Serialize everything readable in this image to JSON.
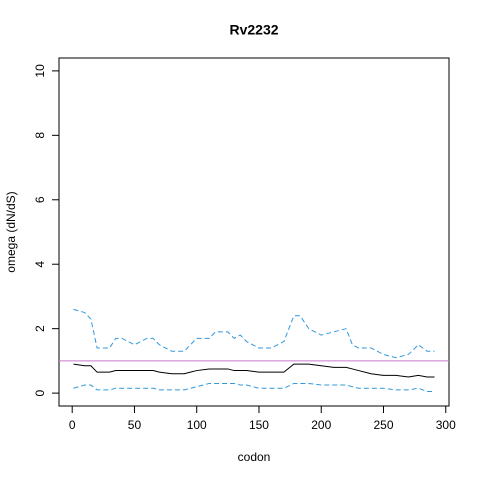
{
  "chart_data": {
    "type": "line",
    "title": "Rv2232",
    "x_label": "codon",
    "y_label": "omega (dN/dS)",
    "x": [
      1,
      10,
      15,
      20,
      30,
      35,
      40,
      50,
      60,
      65,
      70,
      80,
      90,
      95,
      100,
      110,
      115,
      125,
      130,
      135,
      140,
      150,
      160,
      170,
      178,
      183,
      190,
      200,
      210,
      220,
      225,
      230,
      240,
      250,
      260,
      270,
      278,
      285,
      291
    ],
    "series": [
      {
        "color": "#3399dd",
        "linestyle": "dashed",
        "values": [
          2.6,
          2.5,
          2.3,
          1.4,
          1.4,
          1.7,
          1.7,
          1.5,
          1.7,
          1.7,
          1.5,
          1.3,
          1.3,
          1.5,
          1.7,
          1.7,
          1.9,
          1.9,
          1.7,
          1.8,
          1.6,
          1.4,
          1.4,
          1.6,
          2.4,
          2.4,
          2.0,
          1.8,
          1.9,
          2.0,
          1.5,
          1.4,
          1.4,
          1.2,
          1.1,
          1.2,
          1.5,
          1.3,
          1.3
        ]
      },
      {
        "color": "#000000",
        "linestyle": "solid",
        "values": [
          0.9,
          0.85,
          0.85,
          0.65,
          0.65,
          0.7,
          0.7,
          0.7,
          0.7,
          0.7,
          0.65,
          0.6,
          0.6,
          0.65,
          0.7,
          0.75,
          0.75,
          0.75,
          0.7,
          0.7,
          0.7,
          0.65,
          0.65,
          0.65,
          0.9,
          0.9,
          0.9,
          0.85,
          0.8,
          0.8,
          0.75,
          0.7,
          0.6,
          0.55,
          0.55,
          0.5,
          0.55,
          0.5,
          0.5
        ]
      },
      {
        "color": "#3399dd",
        "linestyle": "dashed",
        "values": [
          0.15,
          0.25,
          0.25,
          0.1,
          0.1,
          0.15,
          0.15,
          0.15,
          0.15,
          0.15,
          0.1,
          0.1,
          0.1,
          0.15,
          0.2,
          0.3,
          0.3,
          0.3,
          0.3,
          0.25,
          0.25,
          0.15,
          0.15,
          0.15,
          0.3,
          0.3,
          0.3,
          0.25,
          0.25,
          0.25,
          0.2,
          0.15,
          0.15,
          0.15,
          0.1,
          0.1,
          0.15,
          0.05,
          0.05
        ]
      }
    ],
    "hline": {
      "value": 1,
      "color": "#cc77cc"
    },
    "xlim": [
      -10.6,
      302.6
    ],
    "ylim": [
      -0.4,
      10.4
    ],
    "xticks": [
      0,
      50,
      100,
      150,
      200,
      250,
      300
    ],
    "yticks": [
      0,
      2,
      4,
      6,
      8,
      10
    ]
  }
}
